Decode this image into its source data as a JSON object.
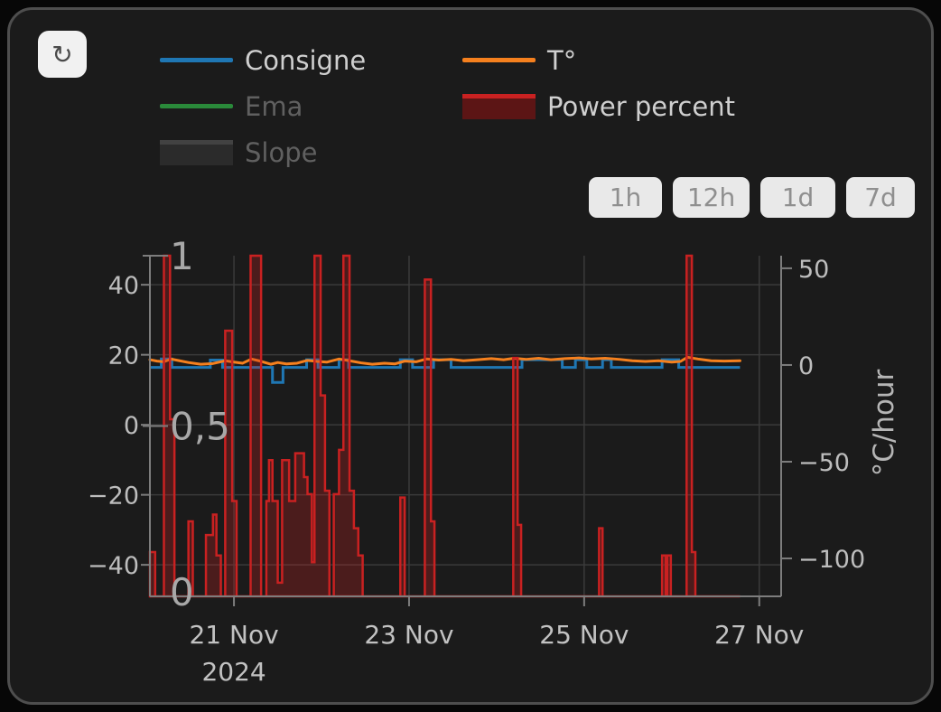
{
  "refresh_button": {
    "glyph": "↻"
  },
  "legend": {
    "items": [
      {
        "label": "Consigne",
        "type": "line",
        "color": "#1f77b4",
        "enabled": true
      },
      {
        "label": "Ema",
        "type": "line",
        "color": "#2a8a3a",
        "enabled": false
      },
      {
        "label": "Slope",
        "type": "box",
        "color": "#2b2b2b",
        "stroke": "#424242",
        "enabled": false
      },
      {
        "label": "T°",
        "type": "line",
        "color": "#f5801e",
        "enabled": true
      },
      {
        "label": "Power percent",
        "type": "box",
        "color": "#5c1515",
        "stroke": "#c92121",
        "enabled": true
      }
    ]
  },
  "time_range_buttons": [
    "1h",
    "12h",
    "1d",
    "7d"
  ],
  "chart_data": {
    "type": "mixed",
    "x_axis": {
      "unit": "day of November 2024",
      "range": [
        20.04,
        27.25
      ],
      "ticks": [
        {
          "t": 21,
          "label": "21 Nov"
        },
        {
          "t": 23,
          "label": "23 Nov"
        },
        {
          "t": 25,
          "label": "25 Nov"
        },
        {
          "t": 27,
          "label": "27 Nov"
        }
      ],
      "year_label": "2024"
    },
    "left_axis": {
      "range": [
        -49.0,
        48.3
      ],
      "ticks": [
        {
          "v": 40,
          "label": "40"
        },
        {
          "v": 20,
          "label": "20"
        },
        {
          "v": 0,
          "label": "0"
        },
        {
          "v": -20,
          "label": "−20"
        },
        {
          "v": -40,
          "label": "−40"
        }
      ]
    },
    "power_axis": {
      "range": [
        0,
        1
      ],
      "ticks": [
        {
          "v": 1,
          "label": "1"
        },
        {
          "v": 0.5,
          "label": "0,5"
        },
        {
          "v": 0,
          "label": "0"
        }
      ]
    },
    "right_axis": {
      "title": "°C/hour",
      "range": [
        -119.6,
        56.5
      ],
      "ticks": [
        {
          "v": 50,
          "label": "50"
        },
        {
          "v": 0,
          "label": "0"
        },
        {
          "v": -50,
          "label": "−50"
        },
        {
          "v": -100,
          "label": "−100"
        }
      ]
    },
    "series": [
      {
        "name": "Consigne",
        "type": "step-line",
        "axis": "left",
        "color": "#1f77b4",
        "width": 3,
        "points": [
          [
            20.04,
            16.4
          ],
          [
            20.17,
            18.8
          ],
          [
            20.29,
            16.4
          ],
          [
            20.73,
            18.5
          ],
          [
            20.87,
            16.4
          ],
          [
            21.44,
            12.1
          ],
          [
            21.56,
            16.4
          ],
          [
            21.83,
            18.6
          ],
          [
            21.96,
            16.4
          ],
          [
            22.2,
            18.6
          ],
          [
            22.31,
            16.4
          ],
          [
            22.9,
            18.6
          ],
          [
            23.04,
            16.4
          ],
          [
            23.28,
            18.6
          ],
          [
            23.48,
            16.4
          ],
          [
            24.29,
            18.6
          ],
          [
            24.75,
            16.4
          ],
          [
            24.9,
            18.6
          ],
          [
            25.03,
            16.4
          ],
          [
            25.21,
            18.6
          ],
          [
            25.31,
            16.4
          ],
          [
            25.89,
            18.6
          ],
          [
            26.08,
            16.4
          ],
          [
            26.78,
            16.4
          ]
        ]
      },
      {
        "name": "T°",
        "type": "line",
        "axis": "left",
        "color": "#f5801e",
        "width": 3,
        "points": [
          [
            20.04,
            18.6
          ],
          [
            20.12,
            18.2
          ],
          [
            20.2,
            18.0
          ],
          [
            20.28,
            18.8
          ],
          [
            20.36,
            18.4
          ],
          [
            20.48,
            17.8
          ],
          [
            20.62,
            17.3
          ],
          [
            20.76,
            17.5
          ],
          [
            20.9,
            18.3
          ],
          [
            21.0,
            17.9
          ],
          [
            21.1,
            17.6
          ],
          [
            21.2,
            18.8
          ],
          [
            21.3,
            18.2
          ],
          [
            21.42,
            17.3
          ],
          [
            21.5,
            17.8
          ],
          [
            21.6,
            17.4
          ],
          [
            21.72,
            17.6
          ],
          [
            21.84,
            18.4
          ],
          [
            21.95,
            18.1
          ],
          [
            22.06,
            17.9
          ],
          [
            22.2,
            18.8
          ],
          [
            22.32,
            18.3
          ],
          [
            22.45,
            17.7
          ],
          [
            22.58,
            17.3
          ],
          [
            22.72,
            17.6
          ],
          [
            22.84,
            17.4
          ],
          [
            22.95,
            18.2
          ],
          [
            23.08,
            18.0
          ],
          [
            23.2,
            18.8
          ],
          [
            23.34,
            18.5
          ],
          [
            23.48,
            18.7
          ],
          [
            23.62,
            18.3
          ],
          [
            23.78,
            18.6
          ],
          [
            23.94,
            18.9
          ],
          [
            24.08,
            18.6
          ],
          [
            24.2,
            19.0
          ],
          [
            24.34,
            18.7
          ],
          [
            24.48,
            19.0
          ],
          [
            24.62,
            18.6
          ],
          [
            24.78,
            18.9
          ],
          [
            24.94,
            19.1
          ],
          [
            25.08,
            18.8
          ],
          [
            25.24,
            19.0
          ],
          [
            25.4,
            18.7
          ],
          [
            25.55,
            18.3
          ],
          [
            25.7,
            18.1
          ],
          [
            25.85,
            18.3
          ],
          [
            26.0,
            17.9
          ],
          [
            26.1,
            18.1
          ],
          [
            26.18,
            19.3
          ],
          [
            26.3,
            18.8
          ],
          [
            26.45,
            18.3
          ],
          [
            26.6,
            18.2
          ],
          [
            26.78,
            18.3
          ]
        ]
      },
      {
        "name": "Power percent",
        "type": "step-area",
        "axis": "power",
        "stroke": "#c92121",
        "fill": "rgba(201,33,33,0.28)",
        "width": 2.5,
        "end_t": 26.78,
        "points": [
          [
            20.04,
            0.13
          ],
          [
            20.1,
            0
          ],
          [
            20.2,
            1
          ],
          [
            20.27,
            0.52
          ],
          [
            20.32,
            0
          ],
          [
            20.48,
            0.22
          ],
          [
            20.53,
            0
          ],
          [
            20.68,
            0.18
          ],
          [
            20.76,
            0.24
          ],
          [
            20.8,
            0.12
          ],
          [
            20.85,
            0
          ],
          [
            20.9,
            0.78
          ],
          [
            20.98,
            0.28
          ],
          [
            21.03,
            0
          ],
          [
            21.19,
            1
          ],
          [
            21.31,
            0
          ],
          [
            21.37,
            0.28
          ],
          [
            21.4,
            0.4
          ],
          [
            21.44,
            0.28
          ],
          [
            21.5,
            0.04
          ],
          [
            21.55,
            0.4
          ],
          [
            21.63,
            0.28
          ],
          [
            21.7,
            0.42
          ],
          [
            21.8,
            0.35
          ],
          [
            21.84,
            0.3
          ],
          [
            21.89,
            0.1
          ],
          [
            21.92,
            1
          ],
          [
            21.99,
            0.59
          ],
          [
            22.04,
            0.31
          ],
          [
            22.09,
            0
          ],
          [
            22.14,
            0.3
          ],
          [
            22.2,
            0.43
          ],
          [
            22.25,
            1
          ],
          [
            22.32,
            0.31
          ],
          [
            22.37,
            0.2
          ],
          [
            22.42,
            0.12
          ],
          [
            22.47,
            0
          ],
          [
            22.9,
            0.29
          ],
          [
            22.95,
            0
          ],
          [
            23.18,
            0.93
          ],
          [
            23.25,
            0.22
          ],
          [
            23.29,
            0
          ],
          [
            24.19,
            0.7
          ],
          [
            24.24,
            0.21
          ],
          [
            24.28,
            0
          ],
          [
            25.17,
            0.2
          ],
          [
            25.21,
            0
          ],
          [
            25.89,
            0.12
          ],
          [
            25.93,
            0
          ],
          [
            25.95,
            0.12
          ],
          [
            25.99,
            0
          ],
          [
            26.17,
            1
          ],
          [
            26.23,
            0.13
          ],
          [
            26.27,
            0
          ],
          [
            26.78,
            0
          ]
        ]
      }
    ]
  }
}
